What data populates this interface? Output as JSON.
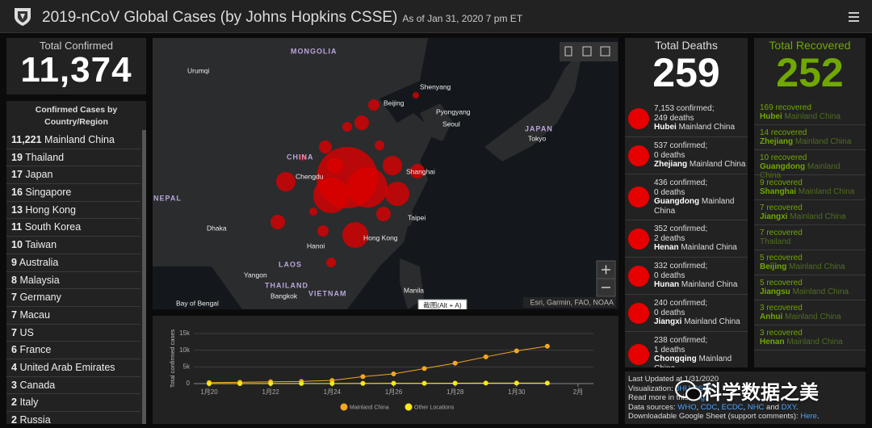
{
  "header": {
    "title": "2019-nCoV Global Cases (by Johns Hopkins CSSE)",
    "subtitle": "As of Jan 31, 2020 7 pm ET"
  },
  "total_confirmed": {
    "label": "Total Confirmed",
    "value": "11,374"
  },
  "country_list": {
    "title": [
      "Confirmed Cases by",
      "Country/Region"
    ],
    "items": [
      {
        "count": "11,221",
        "name": "Mainland China"
      },
      {
        "count": "19",
        "name": "Thailand"
      },
      {
        "count": "17",
        "name": "Japan"
      },
      {
        "count": "16",
        "name": "Singapore"
      },
      {
        "count": "13",
        "name": "Hong Kong"
      },
      {
        "count": "11",
        "name": "South Korea"
      },
      {
        "count": "10",
        "name": "Taiwan"
      },
      {
        "count": "9",
        "name": "Australia"
      },
      {
        "count": "8",
        "name": "Malaysia"
      },
      {
        "count": "7",
        "name": "Germany"
      },
      {
        "count": "7",
        "name": "Macau"
      },
      {
        "count": "7",
        "name": "US"
      },
      {
        "count": "6",
        "name": "France"
      },
      {
        "count": "4",
        "name": "United Arab Emirates"
      },
      {
        "count": "3",
        "name": "Canada"
      },
      {
        "count": "2",
        "name": "Italy"
      },
      {
        "count": "2",
        "name": "Russia"
      }
    ]
  },
  "map": {
    "labels": [
      "MONGOLIA",
      "Urumqi",
      "Beijing",
      "Shenyang",
      "Pyongyang",
      "Seoul",
      "JAPAN",
      "Tokyo",
      "CHINA",
      "Chengdu",
      "Shanghai",
      "NEPAL",
      "Dhaka",
      "Taipei",
      "Hong Kong",
      "Hanoi",
      "LAOS",
      "Yangon",
      "THAILAND",
      "VIETNAM",
      "Bangkok",
      "Manila",
      "Bay of Bengal"
    ],
    "attribution": "Esri, Garmin, FAO, NOAA",
    "tooltip": "截图(Alt + A)"
  },
  "chart_data": {
    "type": "line",
    "y_label": "Total confirmed cases",
    "x": [
      20,
      21,
      22,
      23,
      24,
      25,
      26,
      27,
      28,
      29,
      30,
      31
    ],
    "series": [
      {
        "name": "Mainland China",
        "color": "#f5a623",
        "values": [
          300,
          400,
          550,
          650,
          950,
          2100,
          2900,
          4500,
          6100,
          8000,
          9800,
          11200
        ]
      },
      {
        "name": "Other Locations",
        "color": "#f8e71c",
        "values": [
          10,
          10,
          20,
          30,
          40,
          60,
          80,
          100,
          120,
          140,
          150,
          160
        ]
      }
    ],
    "xlim": [
      19.5,
      32.5
    ],
    "xticks": [
      {
        "value": 20,
        "label": "1月20"
      },
      {
        "value": 22,
        "label": "1月22"
      },
      {
        "value": 24,
        "label": "1月24"
      },
      {
        "value": 26,
        "label": "1月26"
      },
      {
        "value": 28,
        "label": "1月28"
      },
      {
        "value": 30,
        "label": "1月30"
      },
      {
        "value": 32,
        "label": "2月"
      }
    ],
    "ylim": [
      0,
      15000
    ],
    "yticks": [
      0,
      {
        "value": 5000,
        "label": "5k"
      },
      {
        "value": 10000,
        "label": "10k"
      },
      {
        "value": 15000,
        "label": "15k"
      }
    ],
    "grid": true
  },
  "total_deaths": {
    "label": "Total Deaths",
    "value": "259",
    "items": [
      {
        "confirmed": "7,153 confirmed;",
        "deaths": "249 deaths",
        "place": "Hubei",
        "region": "Mainland China"
      },
      {
        "confirmed": "537 confirmed;",
        "deaths": "0 deaths",
        "place": "Zhejiang",
        "region": "Mainland China"
      },
      {
        "confirmed": "436 confirmed;",
        "deaths": "0 deaths",
        "place": "Guangdong",
        "region": "Mainland China"
      },
      {
        "confirmed": "352 confirmed;",
        "deaths": "2 deaths",
        "place": "Henan",
        "region": "Mainland China"
      },
      {
        "confirmed": "332 confirmed;",
        "deaths": "0 deaths",
        "place": "Hunan",
        "region": "Mainland China"
      },
      {
        "confirmed": "240 confirmed;",
        "deaths": "0 deaths",
        "place": "Jiangxi",
        "region": "Mainland China"
      },
      {
        "confirmed": "238 confirmed;",
        "deaths": "1 deaths",
        "place": "Chongqing",
        "region": "Mainland China"
      }
    ]
  },
  "total_recovered": {
    "label": "Total Recovered",
    "value": "252",
    "items": [
      {
        "count": "169 recovered",
        "place": "Hubei",
        "region": "Mainland China"
      },
      {
        "count": "14 recovered",
        "place": "Zhejiang",
        "region": "Mainland China"
      },
      {
        "count": "10 recovered",
        "place": "Guangdong",
        "region": "Mainland China"
      },
      {
        "count": "9 recovered",
        "place": "Shanghai",
        "region": "Mainland China"
      },
      {
        "count": "7 recovered",
        "place": "Jiangxi",
        "region": "Mainland China"
      },
      {
        "count": "7 recovered",
        "region": "Thailand"
      },
      {
        "count": "5 recovered",
        "place": "Beijing",
        "region": "Mainland China"
      },
      {
        "count": "5 recovered",
        "place": "Jiangsu",
        "region": "Mainland China"
      },
      {
        "count": "3 recovered",
        "place": "Anhui",
        "region": "Mainland China"
      },
      {
        "count": "3 recovered",
        "place": "Henan",
        "region": "Mainland China"
      }
    ]
  },
  "footer": {
    "lines": [
      [
        {
          "text": "Last Updated at 1/31/2020",
          "link": false
        }
      ],
      [
        {
          "text": "Visualization: ",
          "link": false
        },
        {
          "text": "JHU CSSE",
          "link": true
        }
      ],
      [
        {
          "text": "Read more in this ",
          "link": false
        },
        {
          "text": "blog",
          "link": true
        },
        {
          "text": ".",
          "link": false
        }
      ],
      [
        {
          "text": "Data sources: ",
          "link": false
        },
        {
          "text": "WHO",
          "link": true
        },
        {
          "text": ", ",
          "link": false
        },
        {
          "text": "CDC",
          "link": true
        },
        {
          "text": ", ",
          "link": false
        },
        {
          "text": "ECDC",
          "link": true
        },
        {
          "text": ", ",
          "link": false
        },
        {
          "text": "NHC",
          "link": true
        },
        {
          "text": " and ",
          "link": false
        },
        {
          "text": "DXY",
          "link": true
        },
        {
          "text": ".",
          "link": false
        }
      ],
      [
        {
          "text": "Downloadable Google Sheet (support comments): ",
          "link": false
        },
        {
          "text": "Here",
          "link": true
        },
        {
          "text": ".",
          "link": false
        }
      ]
    ]
  },
  "watermark": "科学数据之美"
}
